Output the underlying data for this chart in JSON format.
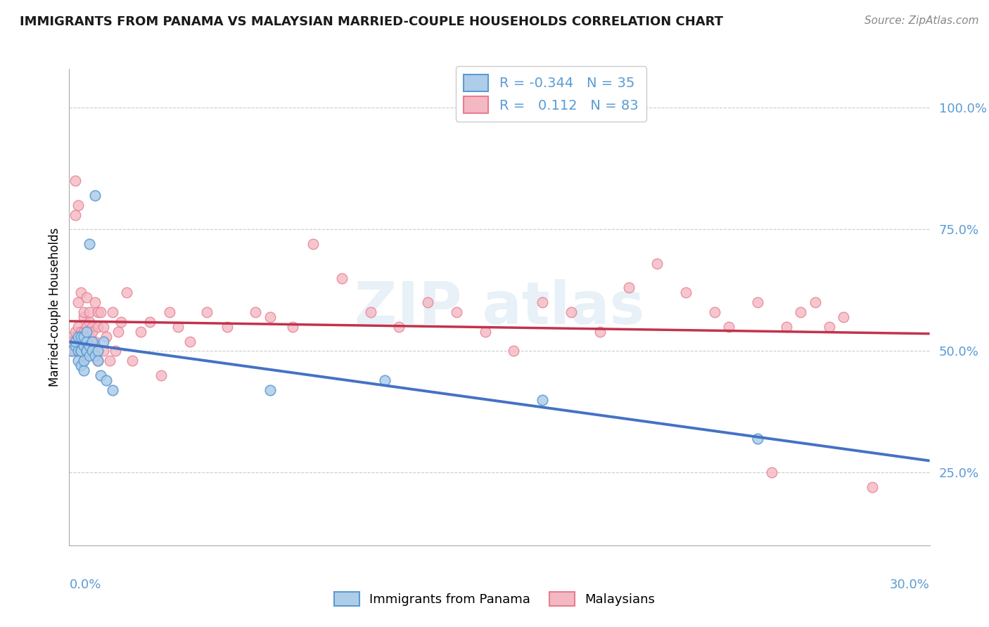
{
  "title": "IMMIGRANTS FROM PANAMA VS MALAYSIAN MARRIED-COUPLE HOUSEHOLDS CORRELATION CHART",
  "source": "Source: ZipAtlas.com",
  "xmin": 0.0,
  "xmax": 0.3,
  "ymin": 0.1,
  "ymax": 1.08,
  "r_panama": "-0.344",
  "n_panama": "35",
  "r_malaysian": "0.112",
  "n_malaysian": "83",
  "color_panama_fill": "#aecde8",
  "color_panama_edge": "#5b9bd5",
  "color_malaysian_fill": "#f4b8c4",
  "color_malaysian_edge": "#e87d8f",
  "color_panama_line": "#4472c4",
  "color_malaysian_line": "#c0334d",
  "yticks": [
    0.25,
    0.5,
    0.75,
    1.0
  ],
  "ytick_labels": [
    "25.0%",
    "50.0%",
    "75.0%",
    "100.0%"
  ],
  "panama_x": [
    0.001,
    0.002,
    0.002,
    0.003,
    0.003,
    0.003,
    0.004,
    0.004,
    0.004,
    0.004,
    0.005,
    0.005,
    0.005,
    0.005,
    0.006,
    0.006,
    0.006,
    0.006,
    0.007,
    0.007,
    0.007,
    0.008,
    0.008,
    0.009,
    0.009,
    0.01,
    0.01,
    0.011,
    0.012,
    0.013,
    0.015,
    0.07,
    0.11,
    0.165,
    0.24
  ],
  "panama_y": [
    0.5,
    0.51,
    0.52,
    0.53,
    0.5,
    0.48,
    0.5,
    0.53,
    0.47,
    0.5,
    0.46,
    0.48,
    0.51,
    0.53,
    0.5,
    0.52,
    0.54,
    0.5,
    0.51,
    0.72,
    0.49,
    0.52,
    0.5,
    0.82,
    0.49,
    0.5,
    0.48,
    0.45,
    0.52,
    0.44,
    0.42,
    0.42,
    0.44,
    0.4,
    0.32
  ],
  "malaysian_x": [
    0.001,
    0.001,
    0.001,
    0.002,
    0.002,
    0.002,
    0.002,
    0.002,
    0.003,
    0.003,
    0.003,
    0.003,
    0.003,
    0.004,
    0.004,
    0.004,
    0.004,
    0.005,
    0.005,
    0.005,
    0.005,
    0.005,
    0.006,
    0.006,
    0.006,
    0.006,
    0.007,
    0.007,
    0.007,
    0.008,
    0.008,
    0.008,
    0.009,
    0.009,
    0.01,
    0.01,
    0.01,
    0.011,
    0.012,
    0.012,
    0.013,
    0.014,
    0.015,
    0.016,
    0.017,
    0.018,
    0.02,
    0.022,
    0.025,
    0.028,
    0.032,
    0.035,
    0.038,
    0.042,
    0.048,
    0.055,
    0.065,
    0.07,
    0.078,
    0.085,
    0.095,
    0.105,
    0.115,
    0.125,
    0.135,
    0.145,
    0.155,
    0.165,
    0.175,
    0.185,
    0.195,
    0.205,
    0.215,
    0.225,
    0.23,
    0.24,
    0.245,
    0.25,
    0.255,
    0.26,
    0.265,
    0.27,
    0.28
  ],
  "malaysian_y": [
    0.53,
    0.52,
    0.5,
    0.85,
    0.54,
    0.5,
    0.52,
    0.78,
    0.5,
    0.55,
    0.52,
    0.8,
    0.6,
    0.52,
    0.62,
    0.5,
    0.54,
    0.54,
    0.57,
    0.48,
    0.58,
    0.52,
    0.55,
    0.5,
    0.61,
    0.52,
    0.56,
    0.53,
    0.58,
    0.5,
    0.55,
    0.54,
    0.52,
    0.6,
    0.55,
    0.58,
    0.48,
    0.58,
    0.55,
    0.5,
    0.53,
    0.48,
    0.58,
    0.5,
    0.54,
    0.56,
    0.62,
    0.48,
    0.54,
    0.56,
    0.45,
    0.58,
    0.55,
    0.52,
    0.58,
    0.55,
    0.58,
    0.57,
    0.55,
    0.72,
    0.65,
    0.58,
    0.55,
    0.6,
    0.58,
    0.54,
    0.5,
    0.6,
    0.58,
    0.54,
    0.63,
    0.68,
    0.62,
    0.58,
    0.55,
    0.6,
    0.25,
    0.55,
    0.58,
    0.6,
    0.55,
    0.57,
    0.22
  ]
}
